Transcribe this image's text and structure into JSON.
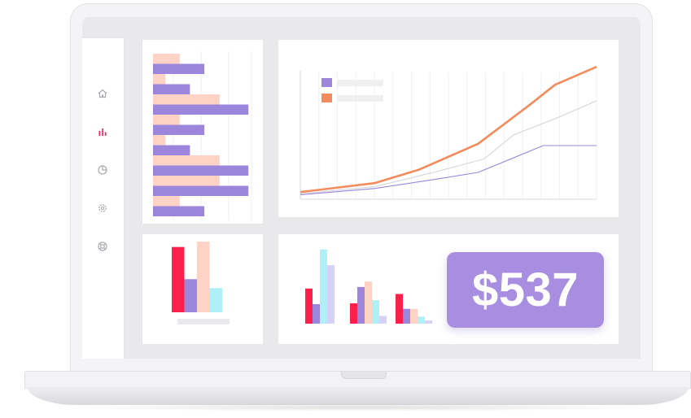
{
  "price": {
    "value": "$537"
  },
  "colors": {
    "purple": "#9b86dc",
    "peach": "#fcd3c4",
    "orange": "#f48b5c",
    "red": "#ff1f4b",
    "cyan": "#aef0f6",
    "lavender": "#d6d2f5",
    "grey_line": "#cfcfd6"
  },
  "sidebar": {
    "icons": [
      "home-icon",
      "bar-chart-icon",
      "pie-chart-icon",
      "settings-icon",
      "lifebuoy-icon"
    ],
    "active": "bar-chart-icon"
  },
  "chart_data": [
    {
      "type": "bar",
      "orientation": "horizontal",
      "series": [
        {
          "color": "#fcd3c4",
          "values": [
            0.26,
            0.12,
            0.65,
            0.26,
            0.12,
            0.65,
            0.65,
            0.26
          ]
        },
        {
          "color": "#9b86dc",
          "values": [
            0.5,
            0.36,
            0.93,
            0.5,
            0.36,
            0.93,
            0.93,
            0.5
          ]
        }
      ]
    },
    {
      "type": "line",
      "legend": [
        {
          "color": "#9b86dc",
          "label": ""
        },
        {
          "color": "#f48b5c",
          "label": ""
        }
      ],
      "x": [
        0,
        1,
        2,
        3,
        4,
        5,
        6,
        7
      ],
      "series": [
        {
          "color": "#f48b5c",
          "width": 2.6,
          "values": [
            0.08,
            0.18,
            0.33,
            0.62,
            1.07,
            1.28,
            1.48,
            1.48
          ]
        },
        {
          "color": "#9b86dc",
          "width": 1.1,
          "values": [
            0.05,
            0.12,
            0.22,
            0.3,
            0.6,
            0.6,
            0.6,
            0.6
          ]
        },
        {
          "color": "#d4d4da",
          "width": 1.1,
          "values": [
            0.06,
            0.14,
            0.3,
            0.45,
            0.72,
            0.9,
            1.1,
            1.1
          ]
        }
      ],
      "ylim": [
        0,
        1.6
      ]
    },
    {
      "type": "bar",
      "values": [
        0.73,
        0.37,
        0.79,
        0.27
      ],
      "colors": [
        "#ff1f4b",
        "#9b86dc",
        "#fcd3c4",
        "#aef0f6"
      ]
    },
    {
      "type": "bar",
      "groups": [
        {
          "values": [
            0.45,
            0.25,
            0.95,
            0.75
          ],
          "colors": [
            "#ff1f4b",
            "#9b86dc",
            "#aef0f6",
            "#d6d2f5"
          ]
        },
        {
          "values": [
            0.26,
            0.47,
            0.54,
            0.3,
            0.1
          ],
          "colors": [
            "#ff1f4b",
            "#9b86dc",
            "#fcd3c4",
            "#aef0f6",
            "#d6d2f5"
          ]
        },
        {
          "values": [
            0.38,
            0.19,
            0.19,
            0.09,
            0.04
          ],
          "colors": [
            "#ff1f4b",
            "#9b86dc",
            "#fcd3c4",
            "#aef0f6",
            "#d6d2f5"
          ]
        }
      ]
    }
  ]
}
